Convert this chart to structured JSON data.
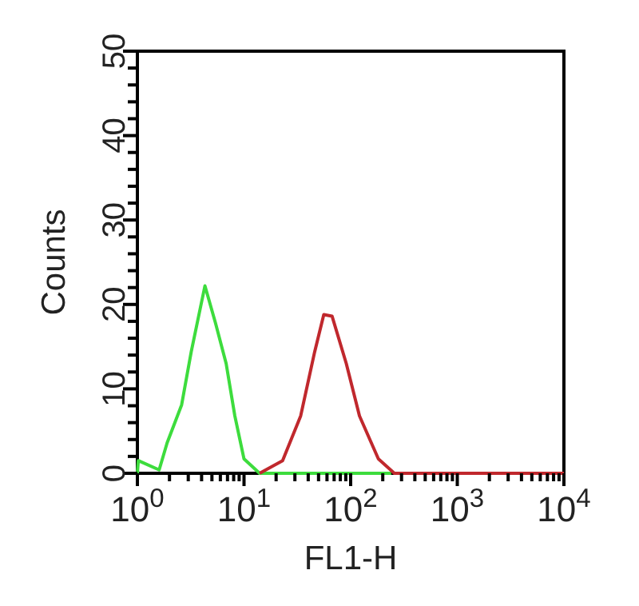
{
  "chart_data": {
    "type": "line",
    "xlabel": "FL1-H",
    "ylabel": "Counts",
    "log": "x",
    "grid": false,
    "marker": "none",
    "line_style": "solid",
    "xlim": [
      1,
      10000
    ],
    "ylim": [
      0,
      50
    ],
    "xticks": [
      {
        "value": 1,
        "label": "10$^{0}$"
      },
      {
        "value": 2,
        "label": null
      },
      {
        "value": 3,
        "label": null
      },
      {
        "value": 4,
        "label": null
      },
      {
        "value": 5,
        "label": null
      },
      {
        "value": 6,
        "label": null
      },
      {
        "value": 7,
        "label": null
      },
      {
        "value": 8,
        "label": null
      },
      {
        "value": 9,
        "label": null
      },
      {
        "value": 10,
        "label": "10$^{1}$"
      },
      {
        "value": 20,
        "label": null
      },
      {
        "value": 30,
        "label": null
      },
      {
        "value": 40,
        "label": null
      },
      {
        "value": 50,
        "label": null
      },
      {
        "value": 60,
        "label": null
      },
      {
        "value": 70,
        "label": null
      },
      {
        "value": 80,
        "label": null
      },
      {
        "value": 90,
        "label": null
      },
      {
        "value": 100,
        "label": "10$^{2}$"
      },
      {
        "value": 200,
        "label": null
      },
      {
        "value": 300,
        "label": null
      },
      {
        "value": 400,
        "label": null
      },
      {
        "value": 500,
        "label": null
      },
      {
        "value": 600,
        "label": null
      },
      {
        "value": 700,
        "label": null
      },
      {
        "value": 800,
        "label": null
      },
      {
        "value": 900,
        "label": null
      },
      {
        "value": 1000,
        "label": "10$^{3}$"
      },
      {
        "value": 2000,
        "label": null
      },
      {
        "value": 3000,
        "label": null
      },
      {
        "value": 4000,
        "label": null
      },
      {
        "value": 5000,
        "label": null
      },
      {
        "value": 6000,
        "label": null
      },
      {
        "value": 7000,
        "label": null
      },
      {
        "value": 8000,
        "label": null
      },
      {
        "value": 9000,
        "label": null
      },
      {
        "value": 10000,
        "label": "10$^{4}$"
      }
    ],
    "yticks": [
      0,
      {
        "value": 2,
        "label": null
      },
      {
        "value": 4,
        "label": null
      },
      {
        "value": 6,
        "label": null
      },
      {
        "value": 8,
        "label": null
      },
      10,
      {
        "value": 12,
        "label": null
      },
      {
        "value": 14,
        "label": null
      },
      {
        "value": 16,
        "label": null
      },
      {
        "value": 18,
        "label": null
      },
      20,
      {
        "value": 22,
        "label": null
      },
      {
        "value": 24,
        "label": null
      },
      {
        "value": 26,
        "label": null
      },
      {
        "value": 28,
        "label": null
      },
      30,
      {
        "value": 32,
        "label": null
      },
      {
        "value": 34,
        "label": null
      },
      {
        "value": 36,
        "label": null
      },
      {
        "value": 38,
        "label": null
      },
      40,
      {
        "value": 42,
        "label": null
      },
      {
        "value": 44,
        "label": null
      },
      {
        "value": 46,
        "label": null
      },
      {
        "value": 48,
        "label": null
      },
      50
    ],
    "series": [
      {
        "color": "#3ddc3d",
        "x": [
          1,
          1.02,
          1.6,
          1.9,
          2.6,
          3.2,
          4.3,
          5.4,
          6.8,
          8.2,
          10,
          14,
          240
        ],
        "values": [
          0,
          1.5,
          0.4,
          3.6,
          8.1,
          14.4,
          22.2,
          17.8,
          13,
          6.8,
          1.7,
          0,
          0
        ]
      },
      {
        "color": "#c0282d",
        "x": [
          14,
          23,
          34,
          46,
          56,
          67,
          91,
          121,
          182,
          257,
          10000
        ],
        "values": [
          0,
          1.5,
          6.8,
          14.4,
          18.8,
          18.6,
          13,
          6.8,
          1.7,
          0,
          0
        ]
      }
    ]
  }
}
